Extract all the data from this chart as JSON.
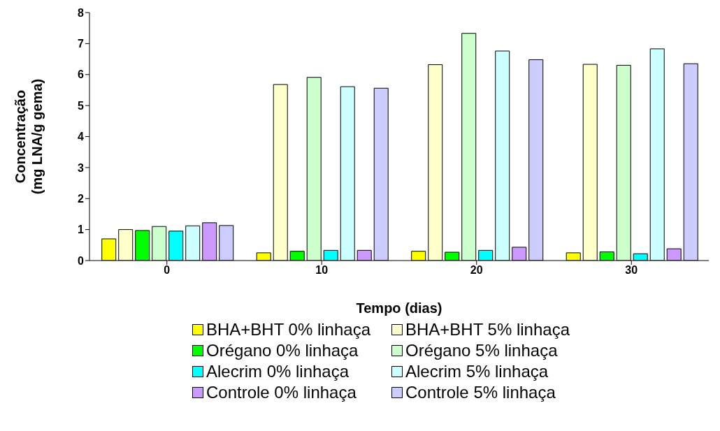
{
  "chart_data": {
    "type": "bar",
    "categories": [
      "0",
      "10",
      "20",
      "30"
    ],
    "xlabel": "Tempo (dias)",
    "ylabel": "Concentração\n(mg LNA/g gema)",
    "ylim": [
      0,
      8
    ],
    "yticks": [
      0,
      1,
      2,
      3,
      4,
      5,
      6,
      7,
      8
    ],
    "grid": false,
    "legend": "bottom",
    "series": [
      {
        "name": "BHA+BHT 0% linhaça",
        "color": "#ffff00",
        "values": [
          0.7,
          0.25,
          0.3,
          0.25
        ]
      },
      {
        "name": "BHA+BHT 5% linhaça",
        "color": "#ffffcc",
        "values": [
          1.0,
          5.68,
          6.32,
          6.33
        ]
      },
      {
        "name": "Orégano 0% linhaça",
        "color": "#00ff00",
        "values": [
          0.97,
          0.3,
          0.27,
          0.28
        ]
      },
      {
        "name": "Orégano 5% linhaça",
        "color": "#ccffcc",
        "values": [
          1.1,
          5.91,
          7.33,
          6.3
        ]
      },
      {
        "name": "Alecrim 0% linhaça",
        "color": "#00ffff",
        "values": [
          0.95,
          0.33,
          0.33,
          0.22
        ]
      },
      {
        "name": "Alecrim 5% linhaça",
        "color": "#ccffff",
        "values": [
          1.12,
          5.61,
          6.76,
          6.83
        ]
      },
      {
        "name": "Controle 0% linhaça",
        "color": "#cc99ff",
        "values": [
          1.22,
          0.33,
          0.43,
          0.38
        ]
      },
      {
        "name": "Controle 5% linhaça",
        "color": "#ccccff",
        "values": [
          1.13,
          5.56,
          6.48,
          6.35
        ]
      }
    ]
  }
}
